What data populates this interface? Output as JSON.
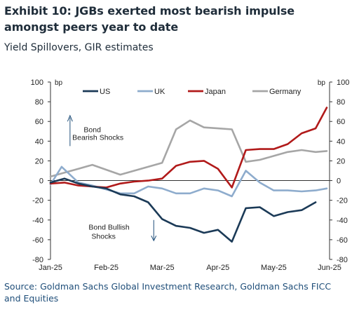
{
  "title": "Exhibit 10: JGBs exerted most bearish impulse amongst peers year to date",
  "subtitle": "Yield Spillovers, GIR estimates",
  "source": "Source: Goldman Sachs Global Investment Research, Goldman Sachs FICC and Equities",
  "chart_data": {
    "type": "line",
    "ylim": [
      -80,
      100
    ],
    "yticks": [
      "100",
      "80",
      "60",
      "40",
      "20",
      "0",
      "-20",
      "-40",
      "-60",
      "-80"
    ],
    "yunit_left": "bp",
    "yunit_right": "bp",
    "xticks": [
      "Jan-25",
      "Feb-25",
      "Mar-25",
      "Apr-25",
      "May-25",
      "Jun-25"
    ],
    "xlim": [
      0,
      5
    ],
    "grid": false,
    "legend_position": "top",
    "annotations": {
      "bearish": [
        "Bond",
        "Bearish Shocks"
      ],
      "bullish": [
        "Bond Bullish",
        "Shocks"
      ]
    },
    "series": [
      {
        "name": "US",
        "color": "#1b3a57",
        "x": [
          0,
          0.25,
          0.5,
          0.75,
          1,
          1.25,
          1.5,
          1.75,
          2,
          2.25,
          2.5,
          2.75,
          3,
          3.25,
          3.5,
          3.75,
          4,
          4.25,
          4.5,
          4.75
        ],
        "values": [
          -2,
          2,
          -3,
          -6,
          -8,
          -14,
          -16,
          -22,
          -39,
          -46,
          -48,
          -53,
          -50,
          -62,
          -28,
          -27,
          -36,
          -32,
          -30,
          -22
        ]
      },
      {
        "name": "UK",
        "color": "#8eaccd",
        "x": [
          0,
          0.2,
          0.5,
          0.75,
          1,
          1.25,
          1.5,
          1.75,
          2,
          2.25,
          2.5,
          2.75,
          3,
          3.25,
          3.5,
          3.75,
          4,
          4.25,
          4.5,
          4.75,
          4.95
        ],
        "values": [
          -4,
          14,
          -2,
          -5,
          -9,
          -13,
          -13,
          -6,
          -8,
          -13,
          -13,
          -8,
          -10,
          -16,
          10,
          -2,
          -10,
          -10,
          -11,
          -10,
          -8
        ]
      },
      {
        "name": "Japan",
        "color": "#b11a1a",
        "x": [
          0,
          0.25,
          0.5,
          0.75,
          1,
          1.25,
          1.5,
          1.75,
          2,
          2.25,
          2.5,
          2.75,
          3,
          3.25,
          3.5,
          3.75,
          4,
          4.25,
          4.5,
          4.75,
          4.95
        ],
        "values": [
          -3,
          -2,
          -5,
          -6,
          -7,
          -3,
          -1,
          0,
          2,
          15,
          19,
          20,
          12,
          -7,
          31,
          32,
          32,
          37,
          48,
          53,
          74
        ]
      },
      {
        "name": "Germany",
        "color": "#a6a6a6",
        "x": [
          0,
          0.25,
          0.5,
          0.75,
          1,
          1.25,
          1.5,
          1.75,
          2,
          2.25,
          2.5,
          2.75,
          3,
          3.25,
          3.5,
          3.75,
          4,
          4.25,
          4.5,
          4.75,
          4.95
        ],
        "values": [
          4,
          8,
          12,
          16,
          11,
          6,
          10,
          14,
          18,
          52,
          61,
          54,
          53,
          52,
          19,
          21,
          25,
          29,
          31,
          29,
          30
        ]
      }
    ]
  }
}
